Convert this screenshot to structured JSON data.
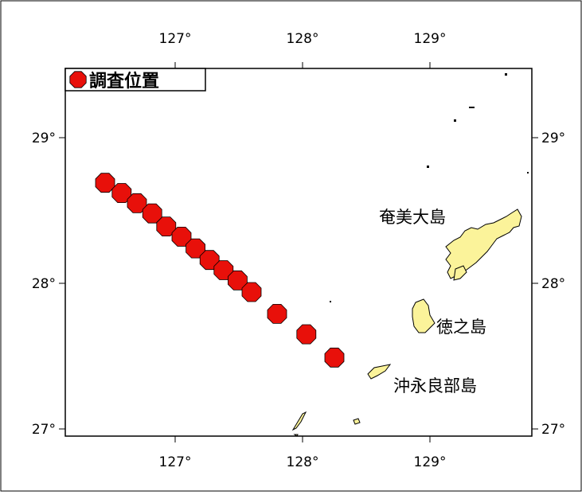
{
  "map": {
    "legend": {
      "label": "調査位置",
      "marker_color": "#e8100a"
    },
    "colors": {
      "land": "#fbf39a",
      "frame": "#000000",
      "marker": "#e8100a"
    },
    "lon_ticks": [
      {
        "value": 127,
        "label": "127°"
      },
      {
        "value": 128,
        "label": "128°"
      },
      {
        "value": 129,
        "label": "129°"
      }
    ],
    "lat_ticks": [
      {
        "value": 29,
        "label": "29°"
      },
      {
        "value": 28,
        "label": "28°"
      },
      {
        "value": 27,
        "label": "27°"
      }
    ],
    "islands": [
      {
        "name": "奄美大島"
      },
      {
        "name": "徳之島"
      },
      {
        "name": "沖永良部島"
      }
    ],
    "survey_points": [
      {
        "lon": 126.45,
        "lat": 28.69
      },
      {
        "lon": 126.58,
        "lat": 28.62
      },
      {
        "lon": 126.7,
        "lat": 28.55
      },
      {
        "lon": 126.82,
        "lat": 28.48
      },
      {
        "lon": 126.93,
        "lat": 28.39
      },
      {
        "lon": 127.05,
        "lat": 28.32
      },
      {
        "lon": 127.16,
        "lat": 28.24
      },
      {
        "lon": 127.27,
        "lat": 28.16
      },
      {
        "lon": 127.38,
        "lat": 28.09
      },
      {
        "lon": 127.49,
        "lat": 28.02
      },
      {
        "lon": 127.6,
        "lat": 27.94
      },
      {
        "lon": 127.8,
        "lat": 27.79
      },
      {
        "lon": 128.03,
        "lat": 27.65
      },
      {
        "lon": 128.25,
        "lat": 27.49
      }
    ]
  }
}
